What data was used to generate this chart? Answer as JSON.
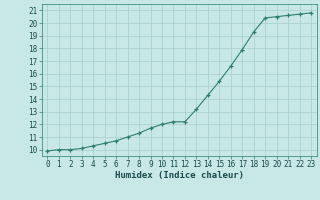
{
  "x": [
    0,
    1,
    2,
    3,
    4,
    5,
    6,
    7,
    8,
    9,
    10,
    11,
    12,
    13,
    14,
    15,
    16,
    17,
    18,
    19,
    20,
    21,
    22,
    23
  ],
  "y": [
    9.9,
    10.0,
    10.0,
    10.1,
    10.3,
    10.5,
    10.7,
    11.0,
    11.3,
    11.7,
    12.0,
    12.2,
    12.2,
    13.2,
    14.3,
    15.4,
    16.6,
    17.9,
    19.3,
    20.4,
    20.5,
    20.6,
    20.7,
    20.8
  ],
  "xlim": [
    -0.5,
    23.5
  ],
  "ylim": [
    9.5,
    21.5
  ],
  "yticks": [
    10,
    11,
    12,
    13,
    14,
    15,
    16,
    17,
    18,
    19,
    20,
    21
  ],
  "xticks": [
    0,
    1,
    2,
    3,
    4,
    5,
    6,
    7,
    8,
    9,
    10,
    11,
    12,
    13,
    14,
    15,
    16,
    17,
    18,
    19,
    20,
    21,
    22,
    23
  ],
  "xlabel": "Humidex (Indice chaleur)",
  "line_color": "#2d7d6e",
  "marker": "+",
  "background_color": "#c8e8e8",
  "grid_color": "#a8cece",
  "tick_color": "#2d7d6e",
  "label_color": "#1a4a4a",
  "font_family": "monospace",
  "xlabel_fontsize": 6.5,
  "tick_fontsize": 5.5
}
